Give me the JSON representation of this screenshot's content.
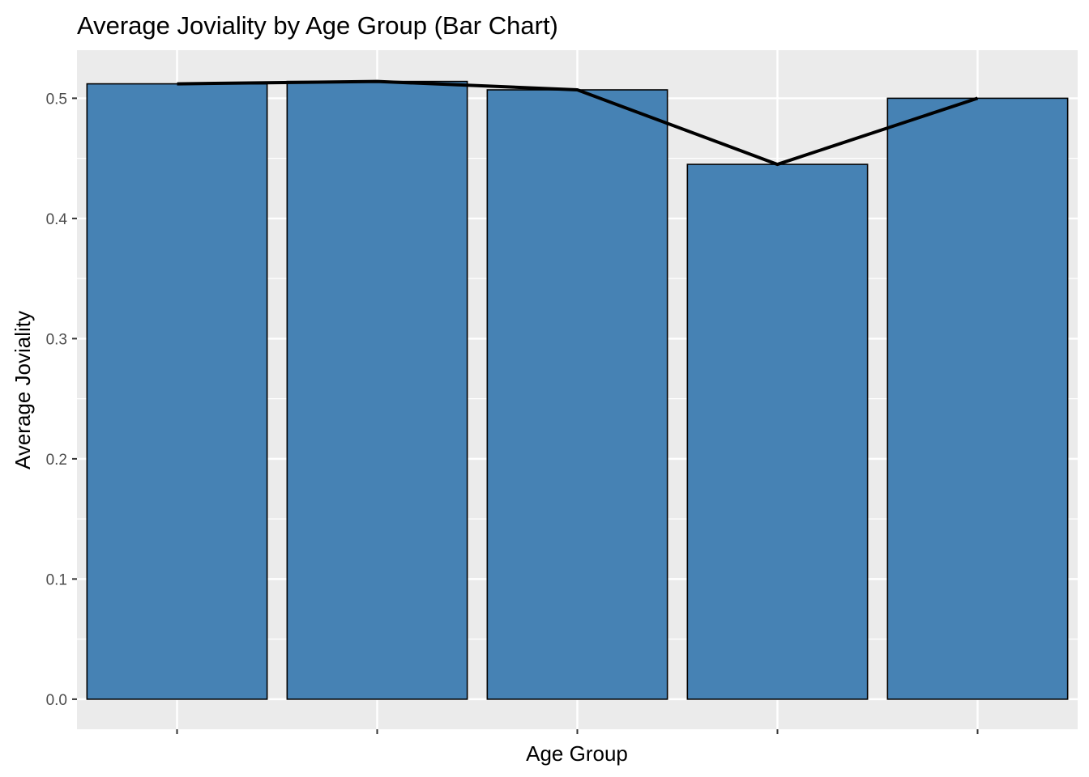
{
  "chart_data": {
    "type": "bar",
    "title": "Average Joviality by Age Group (Bar Chart)",
    "xlabel": "Age Group",
    "ylabel": "Average Joviality",
    "categories": [
      "",
      "",
      "",
      "",
      ""
    ],
    "values": [
      0.512,
      0.514,
      0.507,
      0.445,
      0.5
    ],
    "line_values": [
      0.512,
      0.514,
      0.507,
      0.445,
      0.5
    ],
    "ylim": [
      -0.025,
      0.54
    ],
    "yticks": [
      0.0,
      0.1,
      0.2,
      0.3,
      0.4,
      0.5
    ],
    "ytick_labels": [
      "0.0",
      "0.1",
      "0.2",
      "0.3",
      "0.4",
      "0.5"
    ],
    "grid": true,
    "legend": "none",
    "colors": {
      "bar_fill": "#4682B4",
      "bar_outline": "#000000",
      "line": "#000000",
      "panel_background": "#EBEBEB",
      "grid": "#FFFFFF"
    }
  }
}
